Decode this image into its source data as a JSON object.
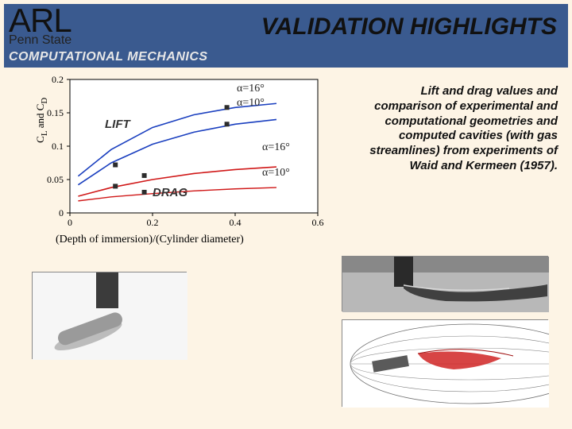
{
  "header": {
    "logo_main": "ARL",
    "logo_sub": "Penn State",
    "subtitle": "COMPUTATIONAL MECHANICS",
    "title": "VALIDATION HIGHLIGHTS"
  },
  "body_text": "Lift and drag values and comparison of experimental and computational geometries and computed cavities (with gas streamlines) from experiments of Waid and Kermeen (1957).",
  "chart": {
    "type": "line",
    "y_label": "C_L and C_D",
    "x_label": "(Depth of immersion)/(Cylinder diameter)",
    "xlim": [
      0,
      0.6
    ],
    "ylim": [
      0,
      0.2
    ],
    "xticks": [
      0,
      0.2,
      0.4,
      0.6
    ],
    "yticks": [
      0,
      0.05,
      0.1,
      0.15,
      0.2
    ],
    "grid_color": "#d8d8d8",
    "axis_color": "#000000",
    "background": "#ffffff",
    "label_lift": "LIFT",
    "label_drag": "DRAG",
    "annot_a16_top": "α=16°",
    "annot_a10_top": "α=10°",
    "annot_a16_mid": "α=16°",
    "annot_a10_mid": "α=10°",
    "series": {
      "lift_a16": {
        "color": "#1a3fbf",
        "width": 1.6,
        "points": [
          [
            0.02,
            0.055
          ],
          [
            0.1,
            0.095
          ],
          [
            0.2,
            0.128
          ],
          [
            0.3,
            0.147
          ],
          [
            0.4,
            0.158
          ],
          [
            0.5,
            0.164
          ]
        ]
      },
      "lift_a10": {
        "color": "#1a3fbf",
        "width": 1.6,
        "points": [
          [
            0.02,
            0.042
          ],
          [
            0.1,
            0.075
          ],
          [
            0.2,
            0.103
          ],
          [
            0.3,
            0.121
          ],
          [
            0.4,
            0.133
          ],
          [
            0.5,
            0.14
          ]
        ]
      },
      "drag_a16": {
        "color": "#d01818",
        "width": 1.6,
        "points": [
          [
            0.02,
            0.025
          ],
          [
            0.1,
            0.038
          ],
          [
            0.2,
            0.05
          ],
          [
            0.3,
            0.059
          ],
          [
            0.4,
            0.065
          ],
          [
            0.5,
            0.069
          ]
        ]
      },
      "drag_a10": {
        "color": "#d01818",
        "width": 1.4,
        "points": [
          [
            0.02,
            0.018
          ],
          [
            0.1,
            0.024
          ],
          [
            0.2,
            0.029
          ],
          [
            0.3,
            0.033
          ],
          [
            0.4,
            0.036
          ],
          [
            0.5,
            0.038
          ]
        ]
      }
    },
    "markers": {
      "color": "#2c2c2c",
      "shape": "square",
      "size": 6,
      "points": [
        [
          0.38,
          0.158
        ],
        [
          0.38,
          0.133
        ],
        [
          0.11,
          0.072
        ],
        [
          0.18,
          0.056
        ],
        [
          0.11,
          0.04
        ],
        [
          0.18,
          0.031
        ]
      ]
    }
  },
  "thumbs": {
    "bg": "#cecece",
    "topright": {
      "waterline_color": "#7d7d7d",
      "body_color": "#333333"
    },
    "botright": {
      "stream_color": "#c82020",
      "body_color": "#4b4b4b"
    },
    "left": {
      "cyl_color": "#888888",
      "shadow": "#555555"
    }
  }
}
